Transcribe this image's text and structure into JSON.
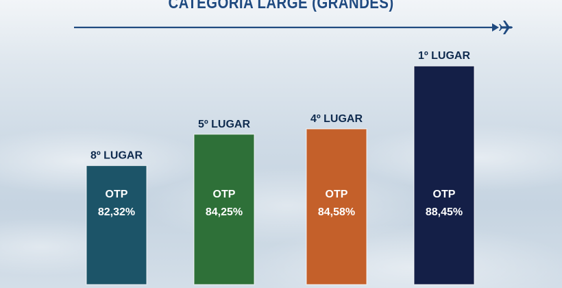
{
  "title": "CATEGORIA LARGE (GRANDES)",
  "arrow_icon": "airplane-icon",
  "colors": {
    "title": "#1f4a80",
    "arrow": "#1f4a80",
    "rank_text": "#0e2a4e"
  },
  "chart_data": {
    "type": "bar",
    "title": "CATEGORIA LARGE (GRANDES)",
    "xlabel": "",
    "ylabel": "",
    "metric_label": "OTP",
    "ylim": [
      75,
      90
    ],
    "bars": [
      {
        "rank": "8º LUGAR",
        "metric": "OTP",
        "value": 82.32,
        "value_label": "82,32%",
        "color": "#1c5468"
      },
      {
        "rank": "5º LUGAR",
        "metric": "OTP",
        "value": 84.25,
        "value_label": "84,25%",
        "color": "#2e7038"
      },
      {
        "rank": "4º LUGAR",
        "metric": "OTP",
        "value": 84.58,
        "value_label": "84,58%",
        "color": "#c4602a"
      },
      {
        "rank": "1º LUGAR",
        "metric": "OTP",
        "value": 88.45,
        "value_label": "88,45%",
        "color": "#141f47"
      }
    ]
  }
}
